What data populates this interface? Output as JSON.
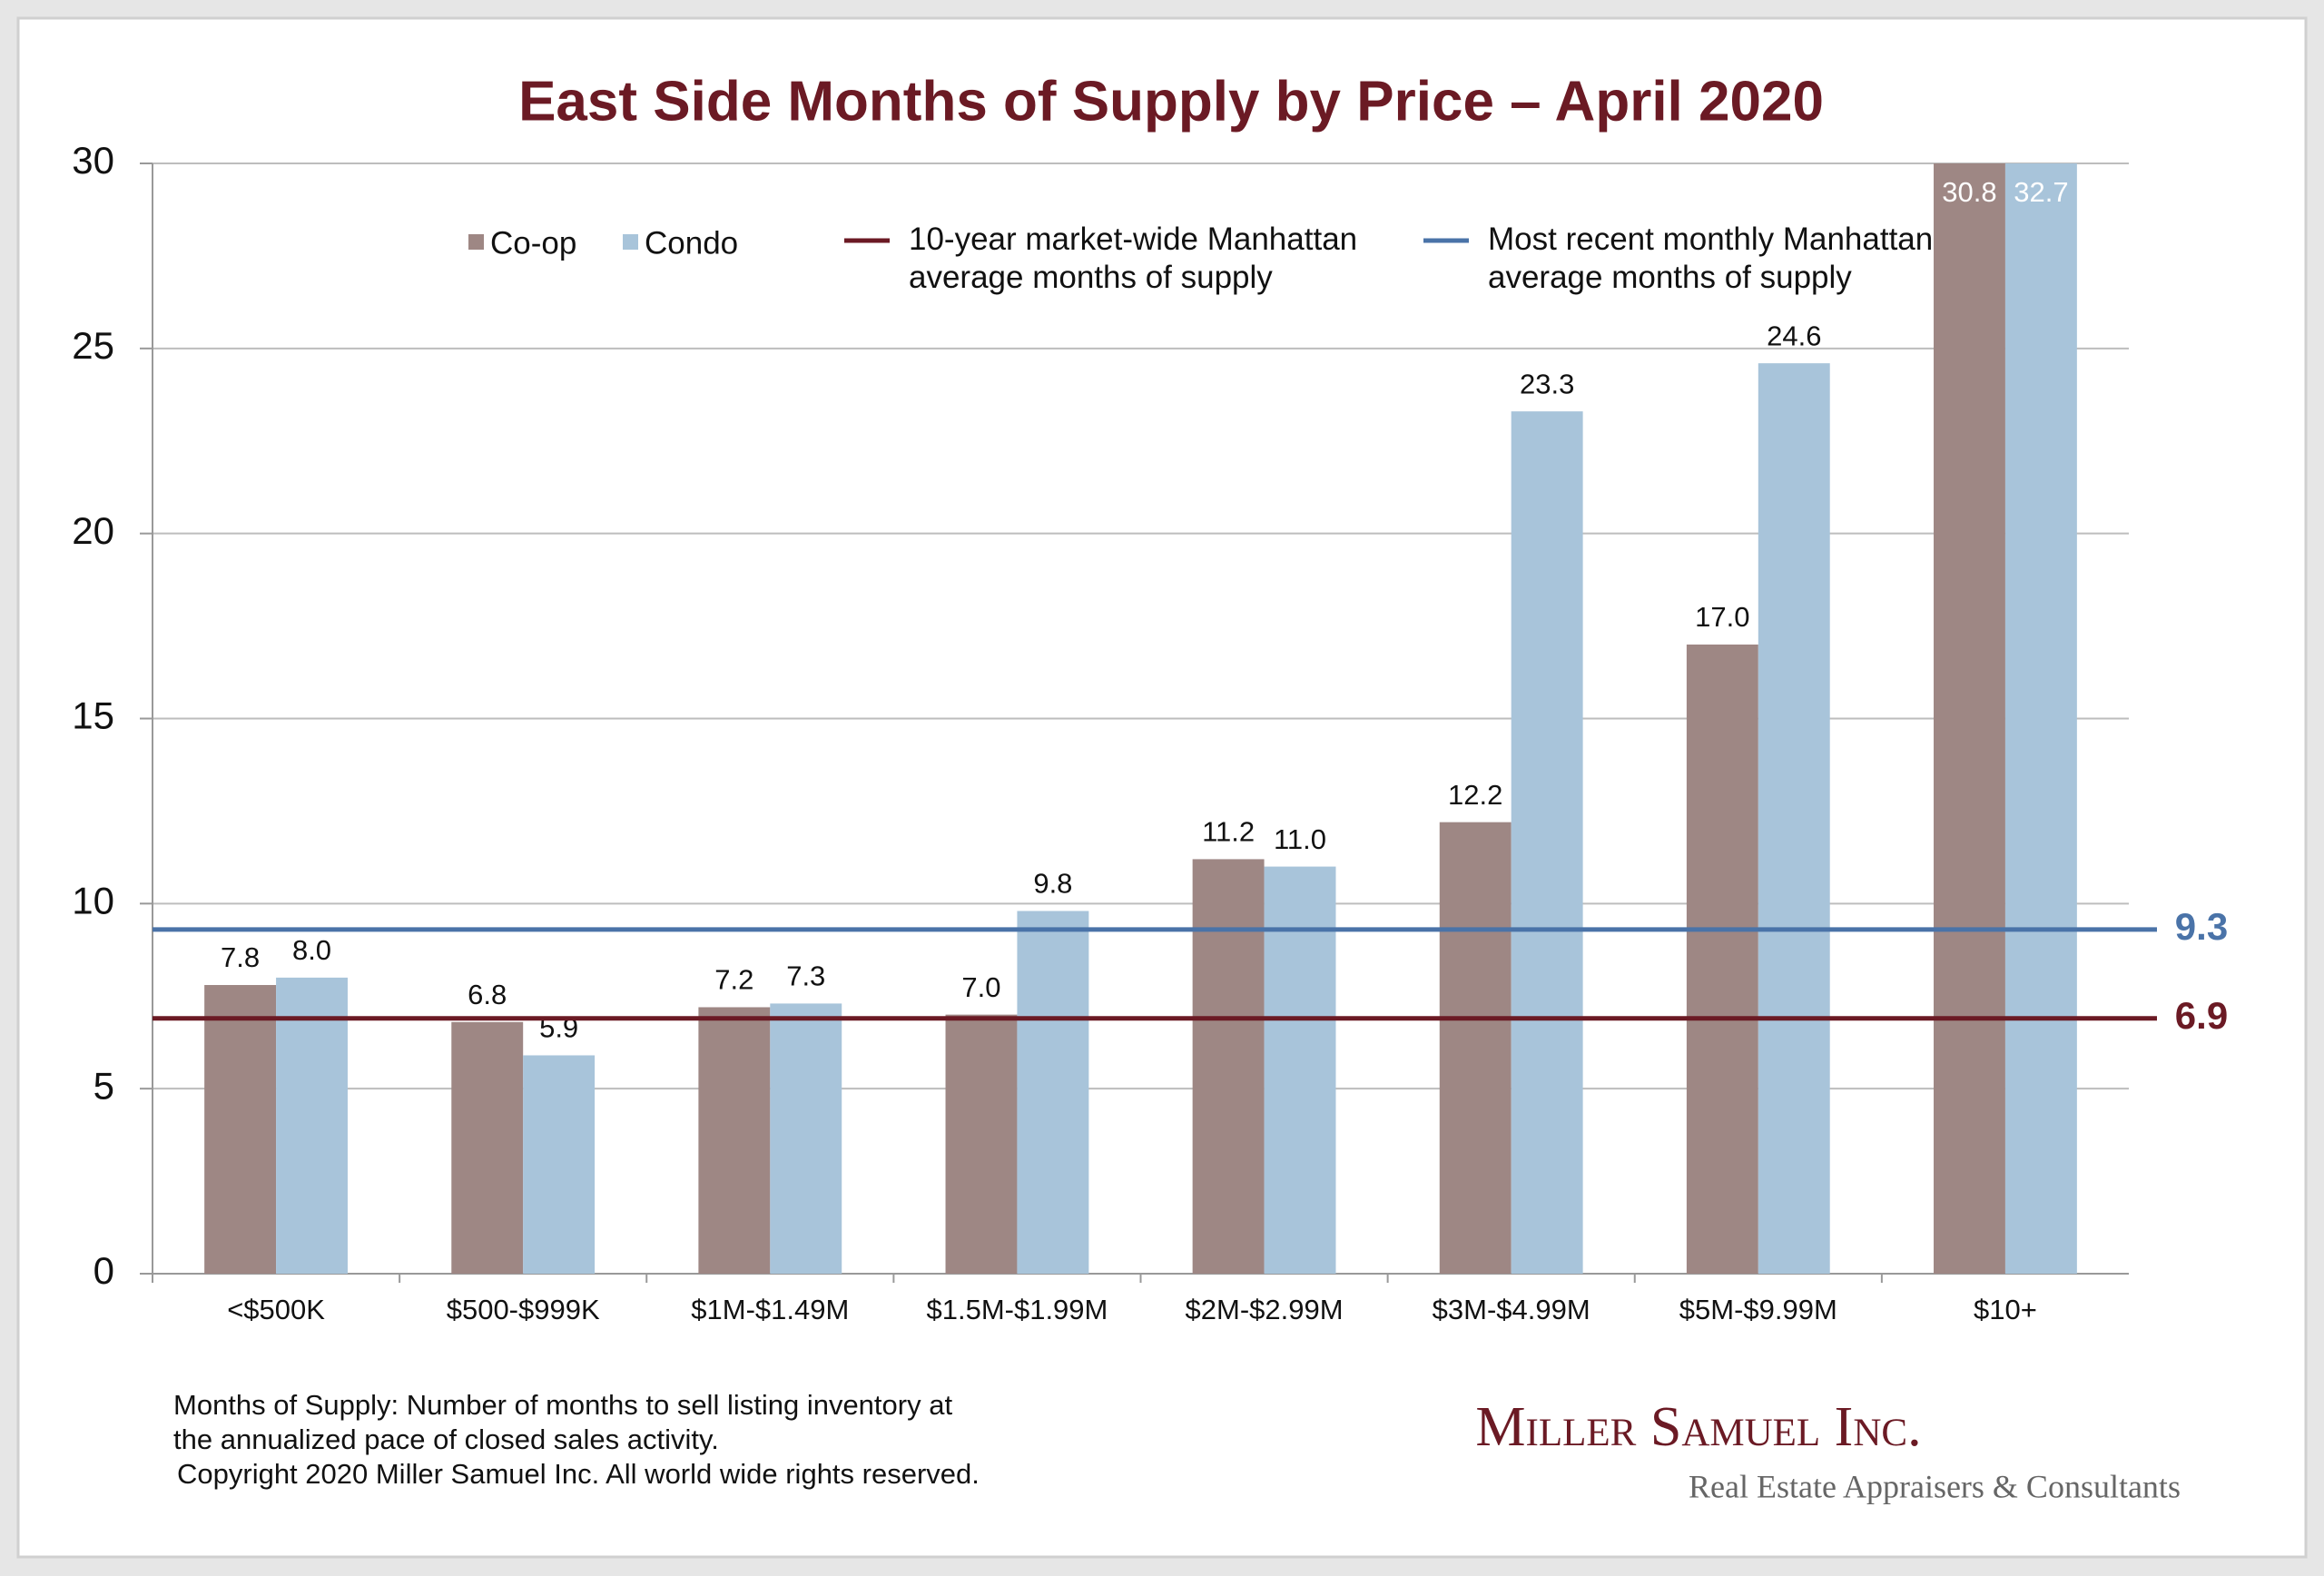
{
  "chart_data": {
    "type": "bar",
    "title": "East Side Months of Supply by Price – April 2020",
    "categories": [
      "<$500K",
      "$500-$999K",
      "$1M-$1.49M",
      "$1.5M-$1.99M",
      "$2M-$2.99M",
      "$3M-$4.99M",
      "$5M-$9.99M",
      "$10+"
    ],
    "series": [
      {
        "name": "Co-op",
        "color": "#9e8784",
        "values": [
          7.8,
          6.8,
          7.2,
          7.0,
          11.2,
          12.2,
          17.0,
          30.8
        ],
        "value_labels": [
          "7.8",
          "6.8",
          "7.2",
          "7.0",
          "11.2",
          "12.2",
          "17.0",
          "30.8"
        ]
      },
      {
        "name": "Condo",
        "color": "#a8c4da",
        "values": [
          8.0,
          5.9,
          7.3,
          9.8,
          11.0,
          23.3,
          24.6,
          32.7
        ],
        "value_labels": [
          "8.0",
          "5.9",
          "7.3",
          "9.8",
          "11.0",
          "23.3",
          "24.6",
          "32.7"
        ]
      }
    ],
    "reference_lines": [
      {
        "name": "10-year market-wide Manhattan average months of supply",
        "value": 6.9,
        "color": "#6b1a24"
      },
      {
        "name": "Most recent monthly Manhattan average months of supply",
        "value": 9.3,
        "color": "#4a73a8"
      }
    ],
    "ylim": [
      0,
      30
    ],
    "yticks": [
      0,
      5,
      10,
      15,
      20,
      25,
      30
    ],
    "grid": true,
    "footnote": [
      "Months of Supply: Number of months to sell listing inventory at",
      "the annualized pace of closed sales activity.",
      "Copyright 2020 Miller Samuel Inc.  All world wide rights reserved."
    ],
    "logo": {
      "name": "Miller Samuel Inc.",
      "tagline": "Real Estate Appraisers & Consultants"
    }
  }
}
